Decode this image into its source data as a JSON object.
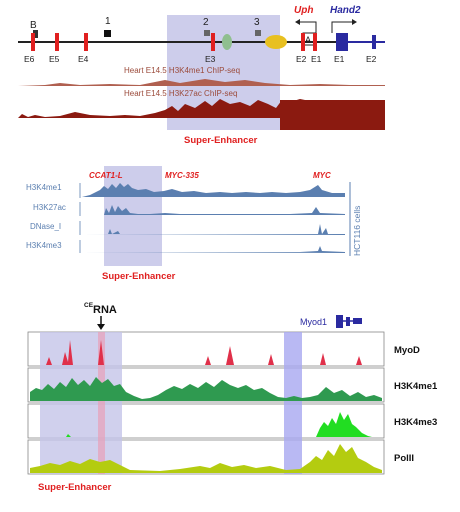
{
  "panel_a": {
    "marker_labels": [
      "B",
      "1",
      "2",
      "3",
      "A"
    ],
    "element_labels": [
      "E6",
      "E5",
      "E4",
      "E3",
      "E2",
      "E1",
      "E1",
      "E2"
    ],
    "gene_uph": "Uph",
    "gene_hand2": "Hand2",
    "track1_label": "Heart E14.5 H3K4me1 ChIP-seq",
    "track2_label": "Heart E14.5 H3K27ac ChIP-seq",
    "se_label": "Super-Enhancer",
    "colors": {
      "element": "#e02020",
      "gene": "#2a2aa0",
      "track": "#8b1a10",
      "se_box": "#b8b8e0",
      "se_text": "#e02020"
    }
  },
  "panel_b": {
    "ccat_label": "CCAT1-L",
    "myc335_label": "MYC-335",
    "myc_label": "MYC",
    "track_labels": [
      "H3K4me1",
      "H3K27ac",
      "DNase_I",
      "H3K4me3"
    ],
    "cell_label": "HCT116 cells",
    "se_label": "Super-Enhancer",
    "colors": {
      "track": "#5b7fb0",
      "label": "#5b7fb0"
    }
  },
  "panel_c": {
    "cerna_sup": "CE",
    "cerna_main": "RNA",
    "gene_label": "Myod1",
    "track_labels": [
      "MyoD",
      "H3K4me1",
      "H3K4me3",
      "PolII"
    ],
    "se_label": "Super-Enhancer",
    "colors": {
      "myod": "#e0304a",
      "h3k4me1": "#2f9a50",
      "h3k4me3": "#22dd22",
      "polii": "#b4cc10"
    }
  }
}
